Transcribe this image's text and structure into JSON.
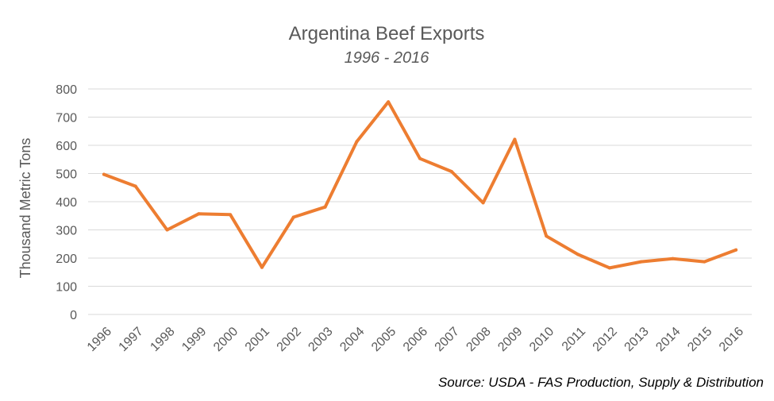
{
  "chart_data": {
    "type": "line",
    "title": "Argentina Beef Exports",
    "subtitle": "1996 - 2016",
    "ylabel": "Thousand Metric Tons",
    "xlabel": "",
    "ylim": [
      0,
      800
    ],
    "yticks": [
      0,
      100,
      200,
      300,
      400,
      500,
      600,
      700,
      800
    ],
    "grid": true,
    "categories": [
      "1996",
      "1997",
      "1998",
      "1999",
      "2000",
      "2001",
      "2002",
      "2003",
      "2004",
      "2005",
      "2006",
      "2007",
      "2008",
      "2009",
      "2010",
      "2011",
      "2012",
      "2013",
      "2014",
      "2015",
      "2016"
    ],
    "series": [
      {
        "values": [
          497,
          455,
          300,
          357,
          354,
          167,
          345,
          381,
          613,
          754,
          553,
          507,
          396,
          621,
          278,
          213,
          165,
          187,
          198,
          187,
          229
        ],
        "color": "#ed7d31"
      }
    ],
    "source": "Source: USDA - FAS Production, Supply & Distribution"
  }
}
